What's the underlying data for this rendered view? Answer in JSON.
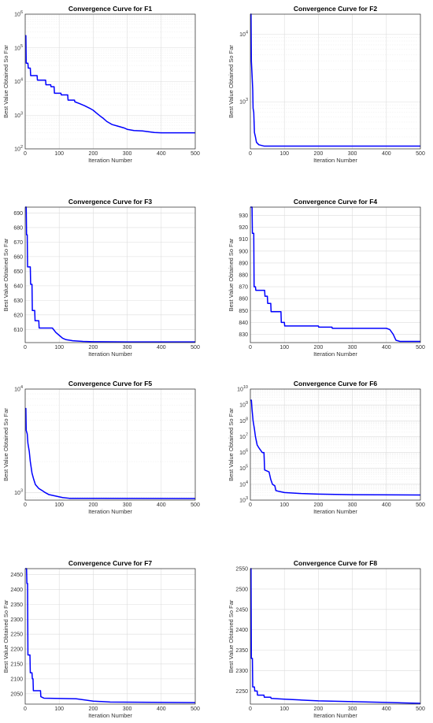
{
  "chart_data": [
    {
      "type": "line",
      "title": "Convergence Curve for F1",
      "xlabel": "Iteration Number",
      "ylabel": "Best Value Obtained So Far",
      "yscale": "log",
      "xlim": [
        0,
        500
      ],
      "ylim": [
        100,
        1000000
      ],
      "xticks": [
        0,
        100,
        200,
        300,
        400,
        500
      ],
      "xtick_labels": [
        "0",
        "100",
        "200",
        "300",
        "400",
        "500"
      ],
      "yticks": [
        100,
        1000,
        10000,
        100000,
        1000000
      ],
      "ytick_labels": [
        "10^2",
        "10^3",
        "10^4",
        "10^5",
        "10^6"
      ],
      "series": [
        {
          "color": "#0000ff",
          "points": [
            [
              0,
              230000
            ],
            [
              2,
              230000
            ],
            [
              3,
              35000
            ],
            [
              8,
              35000
            ],
            [
              9,
              25000
            ],
            [
              15,
              25000
            ],
            [
              16,
              15000
            ],
            [
              35,
              15000
            ],
            [
              36,
              11000
            ],
            [
              60,
              11000
            ],
            [
              61,
              8000
            ],
            [
              75,
              8000
            ],
            [
              76,
              7000
            ],
            [
              85,
              7000
            ],
            [
              86,
              4500
            ],
            [
              105,
              4500
            ],
            [
              106,
              4000
            ],
            [
              125,
              4000
            ],
            [
              126,
              2800
            ],
            [
              145,
              2800
            ],
            [
              146,
              2500
            ],
            [
              160,
              2200
            ],
            [
              175,
              1900
            ],
            [
              190,
              1600
            ],
            [
              200,
              1400
            ],
            [
              210,
              1150
            ],
            [
              220,
              950
            ],
            [
              230,
              800
            ],
            [
              240,
              650
            ],
            [
              255,
              530
            ],
            [
              270,
              480
            ],
            [
              290,
              420
            ],
            [
              300,
              380
            ],
            [
              320,
              350
            ],
            [
              345,
              340
            ],
            [
              380,
              305
            ],
            [
              400,
              300
            ],
            [
              500,
              300
            ]
          ]
        }
      ]
    },
    {
      "type": "line",
      "title": "Convergence Curve for F2",
      "xlabel": "Iteration Number",
      "ylabel": "Best Value Obtained So Far",
      "yscale": "log",
      "xlim": [
        0,
        500
      ],
      "ylim": [
        200,
        20000
      ],
      "xticks": [
        0,
        100,
        200,
        300,
        400,
        500
      ],
      "xtick_labels": [
        "0",
        "100",
        "200",
        "300",
        "400",
        "500"
      ],
      "yticks": [
        1000,
        10000
      ],
      "ytick_labels": [
        "10^3",
        "10^4"
      ],
      "series": [
        {
          "color": "#0000ff",
          "points": [
            [
              0,
              20000
            ],
            [
              2,
              20000
            ],
            [
              3,
              4000
            ],
            [
              5,
              2500
            ],
            [
              7,
              1500
            ],
            [
              8,
              800
            ],
            [
              10,
              700
            ],
            [
              12,
              350
            ],
            [
              15,
              300
            ],
            [
              18,
              250
            ],
            [
              25,
              230
            ],
            [
              40,
              220
            ],
            [
              500,
              220
            ]
          ]
        }
      ]
    },
    {
      "type": "line",
      "title": "Convergence Curve for F3",
      "xlabel": "Iteration Number",
      "ylabel": "Best Value Obtained So Far",
      "yscale": "linear",
      "xlim": [
        0,
        500
      ],
      "ylim": [
        601,
        694
      ],
      "xticks": [
        0,
        100,
        200,
        300,
        400,
        500
      ],
      "xtick_labels": [
        "0",
        "100",
        "200",
        "300",
        "400",
        "500"
      ],
      "yticks": [
        610,
        620,
        630,
        640,
        650,
        660,
        670,
        680,
        690
      ],
      "ytick_labels": [
        "610",
        "620",
        "630",
        "640",
        "650",
        "660",
        "670",
        "680",
        "690"
      ],
      "series": [
        {
          "color": "#0000ff",
          "points": [
            [
              0,
              694
            ],
            [
              3,
              694
            ],
            [
              4,
              675
            ],
            [
              6,
              675
            ],
            [
              7,
              653
            ],
            [
              15,
              653
            ],
            [
              16,
              641
            ],
            [
              20,
              641
            ],
            [
              21,
              623
            ],
            [
              28,
              623
            ],
            [
              29,
              616
            ],
            [
              40,
              616
            ],
            [
              41,
              611
            ],
            [
              80,
              611
            ],
            [
              90,
              608
            ],
            [
              100,
              606
            ],
            [
              110,
              604
            ],
            [
              120,
              603
            ],
            [
              140,
              602.3
            ],
            [
              170,
              601.8
            ],
            [
              200,
              601.6
            ],
            [
              300,
              601.5
            ],
            [
              500,
              601.5
            ]
          ]
        }
      ]
    },
    {
      "type": "line",
      "title": "Convergence Curve for F4",
      "xlabel": "Iteration Number",
      "ylabel": "Best Value Obtained So Far",
      "yscale": "linear",
      "xlim": [
        0,
        500
      ],
      "ylim": [
        823,
        937
      ],
      "xticks": [
        0,
        100,
        200,
        300,
        400,
        500
      ],
      "xtick_labels": [
        "0",
        "100",
        "200",
        "300",
        "400",
        "500"
      ],
      "yticks": [
        830,
        840,
        850,
        860,
        870,
        880,
        890,
        900,
        910,
        920,
        930
      ],
      "ytick_labels": [
        "830",
        "840",
        "850",
        "860",
        "870",
        "880",
        "890",
        "900",
        "910",
        "920",
        "930"
      ],
      "series": [
        {
          "color": "#0000ff",
          "points": [
            [
              0,
              937
            ],
            [
              5,
              937
            ],
            [
              6,
              915
            ],
            [
              10,
              915
            ],
            [
              11,
              870
            ],
            [
              15,
              870
            ],
            [
              16,
              867
            ],
            [
              42,
              867
            ],
            [
              43,
              862
            ],
            [
              50,
              862
            ],
            [
              51,
              856
            ],
            [
              60,
              856
            ],
            [
              61,
              849
            ],
            [
              90,
              849
            ],
            [
              91,
              840
            ],
            [
              100,
              840
            ],
            [
              101,
              837
            ],
            [
              200,
              837
            ],
            [
              201,
              836
            ],
            [
              240,
              836
            ],
            [
              241,
              835
            ],
            [
              400,
              835
            ],
            [
              410,
              834
            ],
            [
              420,
              830
            ],
            [
              428,
              825
            ],
            [
              440,
              824
            ],
            [
              500,
              824
            ]
          ]
        }
      ]
    },
    {
      "type": "line",
      "title": "Convergence Curve for F5",
      "xlabel": "Iteration Number",
      "ylabel": "Best Value Obtained So Far",
      "yscale": "log",
      "xlim": [
        0,
        500
      ],
      "ylim": [
        850,
        10000
      ],
      "xticks": [
        0,
        100,
        200,
        300,
        400,
        500
      ],
      "xtick_labels": [
        "0",
        "100",
        "200",
        "300",
        "400",
        "500"
      ],
      "yticks": [
        1000,
        10000
      ],
      "ytick_labels": [
        "10^3",
        "10^4"
      ],
      "series": [
        {
          "color": "#0000ff",
          "points": [
            [
              0,
              6500
            ],
            [
              2,
              6500
            ],
            [
              3,
              4000
            ],
            [
              6,
              3700
            ],
            [
              8,
              3000
            ],
            [
              12,
              2500
            ],
            [
              15,
              2000
            ],
            [
              20,
              1550
            ],
            [
              25,
              1350
            ],
            [
              30,
              1200
            ],
            [
              40,
              1100
            ],
            [
              50,
              1050
            ],
            [
              60,
              1000
            ],
            [
              70,
              960
            ],
            [
              90,
              930
            ],
            [
              110,
              900
            ],
            [
              130,
              885
            ],
            [
              500,
              880
            ]
          ]
        }
      ]
    },
    {
      "type": "line",
      "title": "Convergence Curve for F6",
      "xlabel": "Iteration Number",
      "ylabel": "Best Value Obtained So Far",
      "yscale": "log",
      "xlim": [
        0,
        500
      ],
      "ylim": [
        1000,
        10000000000
      ],
      "xticks": [
        0,
        100,
        200,
        300,
        400,
        500
      ],
      "xtick_labels": [
        "0",
        "100",
        "200",
        "300",
        "400",
        "500"
      ],
      "yticks": [
        1000,
        10000,
        100000,
        1000000,
        10000000,
        100000000,
        1000000000,
        10000000000
      ],
      "ytick_labels": [
        "10^3",
        "10^4",
        "10^5",
        "10^6",
        "10^7",
        "10^8",
        "10^9",
        "10^10"
      ],
      "series": [
        {
          "color": "#0000ff",
          "points": [
            [
              0,
              2000000000
            ],
            [
              3,
              2000000000
            ],
            [
              5,
              500000000
            ],
            [
              8,
              100000000
            ],
            [
              12,
              30000000
            ],
            [
              15,
              10000000
            ],
            [
              20,
              3000000
            ],
            [
              25,
              2000000
            ],
            [
              35,
              1000000
            ],
            [
              40,
              1000000
            ],
            [
              42,
              80000
            ],
            [
              55,
              60000
            ],
            [
              60,
              20000
            ],
            [
              65,
              10000
            ],
            [
              72,
              8000
            ],
            [
              75,
              4000
            ],
            [
              85,
              3500
            ],
            [
              100,
              3000
            ],
            [
              150,
              2600
            ],
            [
              200,
              2400
            ],
            [
              300,
              2200
            ],
            [
              500,
              2100
            ]
          ]
        }
      ]
    },
    {
      "type": "line",
      "title": "Convergence Curve for F7",
      "xlabel": "Iteration Number",
      "ylabel": "Best Value Obtained So Far",
      "yscale": "linear",
      "xlim": [
        0,
        500
      ],
      "ylim": [
        2015,
        2470
      ],
      "xticks": [
        0,
        100,
        200,
        300,
        400,
        500
      ],
      "xtick_labels": [
        "0",
        "100",
        "200",
        "300",
        "400",
        "500"
      ],
      "yticks": [
        2050,
        2100,
        2150,
        2200,
        2250,
        2300,
        2350,
        2400,
        2450
      ],
      "ytick_labels": [
        "2050",
        "2100",
        "2150",
        "2200",
        "2250",
        "2300",
        "2350",
        "2400",
        "2450"
      ],
      "series": [
        {
          "color": "#0000ff",
          "points": [
            [
              0,
              2470
            ],
            [
              4,
              2470
            ],
            [
              5,
              2420
            ],
            [
              7,
              2420
            ],
            [
              8,
              2180
            ],
            [
              14,
              2180
            ],
            [
              15,
              2120
            ],
            [
              20,
              2120
            ],
            [
              21,
              2100
            ],
            [
              23,
              2100
            ],
            [
              24,
              2060
            ],
            [
              45,
              2060
            ],
            [
              46,
              2040
            ],
            [
              55,
              2035
            ],
            [
              150,
              2033
            ],
            [
              200,
              2025
            ],
            [
              250,
              2022
            ],
            [
              500,
              2020
            ]
          ]
        }
      ]
    },
    {
      "type": "line",
      "title": "Convergence Curve for F8",
      "xlabel": "Iteration Number",
      "ylabel": "Best Value Obtained So Far",
      "yscale": "linear",
      "xlim": [
        0,
        500
      ],
      "ylim": [
        2218,
        2550
      ],
      "xticks": [
        0,
        100,
        200,
        300,
        400,
        500
      ],
      "xtick_labels": [
        "0",
        "100",
        "200",
        "300",
        "400",
        "500"
      ],
      "yticks": [
        2250,
        2300,
        2350,
        2400,
        2450,
        2500,
        2550
      ],
      "ytick_labels": [
        "2250",
        "2300",
        "2350",
        "2400",
        "2450",
        "2500",
        "2550"
      ],
      "series": [
        {
          "color": "#0000ff",
          "points": [
            [
              0,
              2550
            ],
            [
              2,
              2550
            ],
            [
              3,
              2330
            ],
            [
              6,
              2330
            ],
            [
              7,
              2260
            ],
            [
              12,
              2260
            ],
            [
              13,
              2250
            ],
            [
              20,
              2250
            ],
            [
              21,
              2240
            ],
            [
              40,
              2240
            ],
            [
              41,
              2235
            ],
            [
              60,
              2235
            ],
            [
              61,
              2232
            ],
            [
              100,
              2230
            ],
            [
              150,
              2228
            ],
            [
              200,
              2226
            ],
            [
              300,
              2224
            ],
            [
              400,
              2222
            ],
            [
              500,
              2220
            ]
          ]
        }
      ]
    }
  ]
}
